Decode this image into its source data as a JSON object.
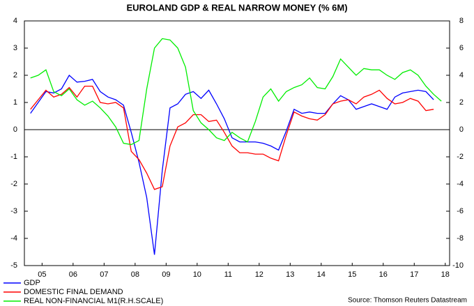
{
  "chart_data": {
    "type": "line",
    "title": "EUROLAND GDP & REAL NARROW MONEY (% 6M)",
    "source": "Source: Thomson Reuters Datastream",
    "x": [
      2005.125,
      2005.375,
      2005.625,
      2005.875,
      2006.125,
      2006.375,
      2006.625,
      2006.875,
      2007.125,
      2007.375,
      2007.625,
      2007.875,
      2008.125,
      2008.375,
      2008.625,
      2008.875,
      2009.125,
      2009.375,
      2009.625,
      2009.875,
      2010.125,
      2010.375,
      2010.625,
      2010.875,
      2011.125,
      2011.375,
      2011.625,
      2011.875,
      2012.125,
      2012.375,
      2012.625,
      2012.875,
      2013.125,
      2013.375,
      2013.625,
      2013.875,
      2014.125,
      2014.375,
      2014.625,
      2014.875,
      2015.125,
      2015.375,
      2015.625,
      2015.875,
      2016.125,
      2016.375,
      2016.625,
      2016.875,
      2017.125,
      2017.375,
      2017.625,
      2017.875,
      2018.125,
      2018.375
    ],
    "series": [
      {
        "name": "GDP",
        "color": "#0000ff",
        "values": [
          0.6,
          1.0,
          1.4,
          1.35,
          1.5,
          2.0,
          1.75,
          1.78,
          1.85,
          1.4,
          1.2,
          1.1,
          0.9,
          -0.1,
          -1.2,
          -2.5,
          -4.6,
          -1.5,
          0.8,
          0.95,
          1.3,
          1.4,
          1.15,
          1.45,
          0.95,
          0.4,
          -0.3,
          -0.45,
          -0.45,
          -0.45,
          -0.5,
          -0.6,
          -0.75,
          -0.05,
          0.75,
          0.6,
          0.65,
          0.6,
          0.6,
          0.95,
          1.25,
          1.1,
          0.75,
          0.85,
          0.95,
          0.85,
          0.75,
          1.2,
          1.35,
          1.4,
          1.45,
          1.4,
          1.1,
          null
        ]
      },
      {
        "name": "DOMESTIC FINAL DEMAND",
        "color": "#ff0000",
        "values": [
          0.75,
          1.1,
          1.45,
          1.2,
          1.3,
          1.55,
          1.2,
          1.6,
          1.6,
          1.0,
          0.95,
          1.0,
          0.8,
          -0.8,
          -1.1,
          -1.6,
          -2.2,
          -2.1,
          -0.6,
          0.1,
          0.25,
          0.55,
          0.55,
          0.3,
          0.35,
          -0.1,
          -0.6,
          -0.85,
          -0.85,
          -0.9,
          -0.9,
          -1.05,
          -1.15,
          -0.2,
          0.65,
          0.5,
          0.4,
          0.35,
          0.55,
          0.95,
          1.05,
          1.1,
          0.95,
          1.2,
          1.3,
          1.45,
          1.15,
          0.95,
          1.0,
          1.15,
          1.05,
          0.7,
          0.75,
          null
        ]
      },
      {
        "name": "REAL NON-FINANCIAL M1(R.H.SCALE)",
        "color": "#00ee00",
        "axis": "y2",
        "values": [
          3.8,
          4.0,
          4.4,
          2.8,
          2.5,
          3.0,
          2.2,
          1.8,
          2.1,
          1.6,
          1.0,
          0.2,
          -1.0,
          -1.1,
          -0.8,
          3.0,
          6.0,
          6.7,
          6.6,
          6.0,
          4.6,
          1.4,
          0.5,
          0.0,
          -0.6,
          -0.8,
          -0.2,
          -0.6,
          -0.9,
          0.6,
          2.4,
          3.0,
          2.1,
          2.8,
          3.1,
          3.3,
          3.8,
          3.1,
          3.0,
          3.9,
          5.2,
          4.6,
          4.0,
          4.5,
          4.4,
          4.4,
          4.0,
          3.7,
          4.2,
          4.4,
          4.0,
          3.2,
          2.6,
          2.1
        ]
      }
    ],
    "xlim": [
      2004.93,
      2018.64
    ],
    "xticks": [
      {
        "value": 2005.5,
        "label": "05"
      },
      {
        "value": 2006.5,
        "label": "06"
      },
      {
        "value": 2007.5,
        "label": "07"
      },
      {
        "value": 2008.5,
        "label": "08"
      },
      {
        "value": 2009.5,
        "label": "09"
      },
      {
        "value": 2010.5,
        "label": "10"
      },
      {
        "value": 2011.5,
        "label": "11"
      },
      {
        "value": 2012.5,
        "label": "12"
      },
      {
        "value": 2013.5,
        "label": "13"
      },
      {
        "value": 2014.5,
        "label": "14"
      },
      {
        "value": 2015.5,
        "label": "15"
      },
      {
        "value": 2016.5,
        "label": "16"
      },
      {
        "value": 2017.5,
        "label": "17"
      },
      {
        "value": 2018.5,
        "label": "18"
      }
    ],
    "ylim": [
      -5,
      4
    ],
    "yticks": [
      -5,
      -4,
      -3,
      -2,
      -1,
      0,
      1,
      2,
      3,
      4
    ],
    "y2lim": [
      -10,
      8
    ],
    "y2ticks": [
      -10,
      -8,
      -6,
      -4,
      -2,
      0,
      2,
      4,
      6,
      8
    ]
  }
}
